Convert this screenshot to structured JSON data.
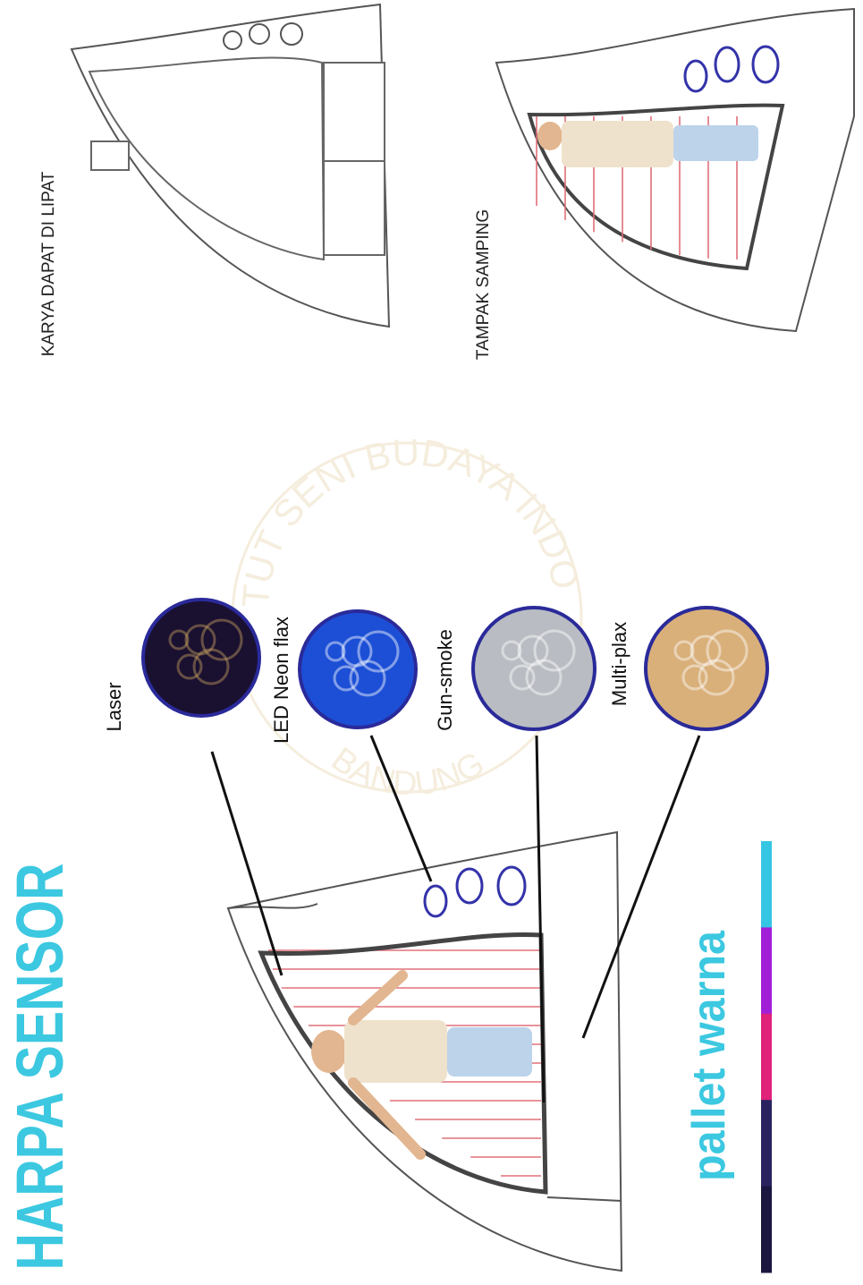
{
  "header": {
    "title": "HARPA SENSOR"
  },
  "materials": [
    {
      "label": "Laser",
      "color": "#1a1030"
    },
    {
      "label": "LED Neon flax",
      "color": "#1c4fd6"
    },
    {
      "label": "Gun-smoke",
      "color": "#b9bcc2"
    },
    {
      "label": "Multi-plax",
      "color": "#d9b07a"
    }
  ],
  "palette": {
    "title": "pallet warna",
    "colors": [
      "#35c6e3",
      "#a21fd8",
      "#e0227a",
      "#2a2360",
      "#1a1640"
    ]
  },
  "views": [
    {
      "label": "KARYA DAPAT DI LIPAT"
    },
    {
      "label": "TAMPAK SAMPING"
    }
  ],
  "watermark": {
    "top": "TUT SENI BUDAYA INDO",
    "bottom": "BANDUNG"
  }
}
